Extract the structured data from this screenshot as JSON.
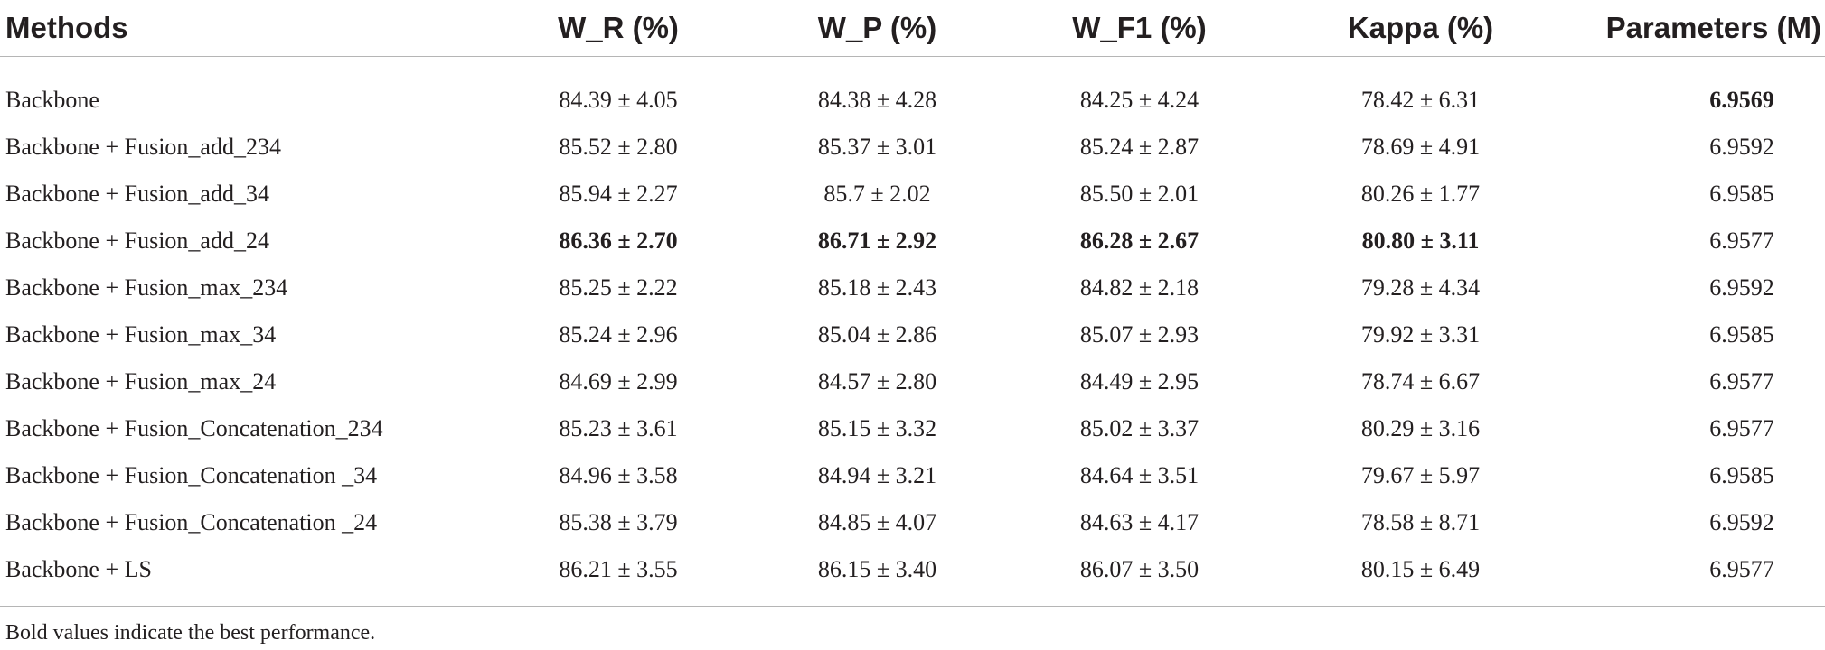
{
  "table": {
    "headers": [
      "Methods",
      "W_R (%)",
      "W_P (%)",
      "W_F1 (%)",
      "Kappa (%)",
      "Parameters (M)"
    ],
    "rows": [
      {
        "method": "Backbone",
        "wr": "84.39 ± 4.05",
        "wp": "84.38 ± 4.28",
        "wf1": "84.25 ± 4.24",
        "kappa": "78.42 ± 6.31",
        "params": "6.9569"
      },
      {
        "method": "Backbone + Fusion_add_234",
        "wr": "85.52 ± 2.80",
        "wp": "85.37 ± 3.01",
        "wf1": "85.24 ± 2.87",
        "kappa": "78.69 ± 4.91",
        "params": "6.9592"
      },
      {
        "method": "Backbone + Fusion_add_34",
        "wr": "85.94 ± 2.27",
        "wp": "85.7 ± 2.02",
        "wf1": "85.50 ± 2.01",
        "kappa": "80.26 ± 1.77",
        "params": "6.9585"
      },
      {
        "method": "Backbone + Fusion_add_24",
        "wr": "86.36 ± 2.70",
        "wp": "86.71 ± 2.92",
        "wf1": "86.28 ± 2.67",
        "kappa": "80.80 ± 3.11",
        "params": "6.9577"
      },
      {
        "method": "Backbone + Fusion_max_234",
        "wr": "85.25 ± 2.22",
        "wp": "85.18 ± 2.43",
        "wf1": "84.82 ± 2.18",
        "kappa": "79.28 ± 4.34",
        "params": "6.9592"
      },
      {
        "method": "Backbone + Fusion_max_34",
        "wr": "85.24 ± 2.96",
        "wp": "85.04 ± 2.86",
        "wf1": "85.07 ± 2.93",
        "kappa": "79.92 ± 3.31",
        "params": "6.9585"
      },
      {
        "method": "Backbone + Fusion_max_24",
        "wr": "84.69 ± 2.99",
        "wp": "84.57 ± 2.80",
        "wf1": "84.49 ± 2.95",
        "kappa": "78.74 ± 6.67",
        "params": "6.9577"
      },
      {
        "method": "Backbone + Fusion_Concatenation_234",
        "wr": "85.23 ± 3.61",
        "wp": "85.15 ± 3.32",
        "wf1": "85.02 ± 3.37",
        "kappa": "80.29 ± 3.16",
        "params": "6.9577"
      },
      {
        "method": "Backbone + Fusion_Concatenation _34",
        "wr": "84.96 ± 3.58",
        "wp": "84.94 ± 3.21",
        "wf1": "84.64 ± 3.51",
        "kappa": "79.67 ± 5.97",
        "params": "6.9585"
      },
      {
        "method": "Backbone + Fusion_Concatenation _24",
        "wr": "85.38 ± 3.79",
        "wp": "84.85 ± 4.07",
        "wf1": "84.63 ± 4.17",
        "kappa": "78.58 ± 8.71",
        "params": "6.9592"
      },
      {
        "method": "Backbone + LS",
        "wr": "86.21 ± 3.55",
        "wp": "86.15 ± 3.40",
        "wf1": "86.07 ± 3.50",
        "kappa": "80.15 ± 6.49",
        "params": "6.9577"
      }
    ]
  },
  "footnote": "Bold values indicate the best performance."
}
